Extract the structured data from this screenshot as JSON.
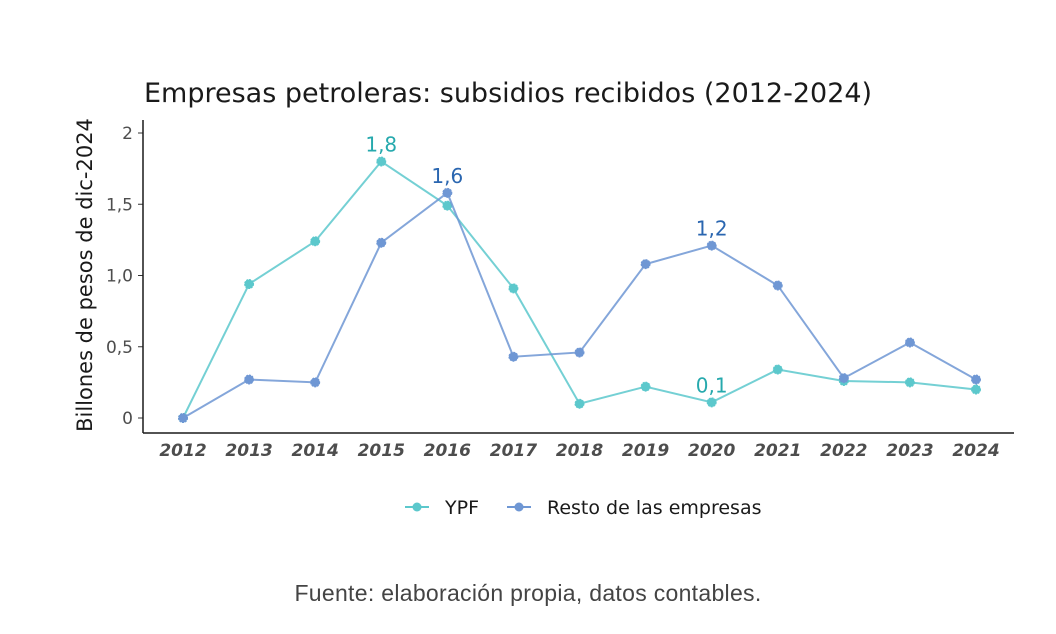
{
  "chart_data": {
    "type": "line",
    "title": "Empresas petroleras: subsidios recibidos (2012-2024)",
    "xlabel": "",
    "ylabel": "Billones de pesos de dic-2024",
    "ylim": [
      0,
      2
    ],
    "yticks": [
      0,
      0.5,
      1.0,
      1.5,
      2
    ],
    "ytick_labels": [
      "0",
      "0,5",
      "1,0",
      "1,5",
      "2"
    ],
    "categories": [
      "2012",
      "2013",
      "2014",
      "2015",
      "2016",
      "2017",
      "2018",
      "2019",
      "2020",
      "2021",
      "2022",
      "2023",
      "2024"
    ],
    "series": [
      {
        "name": "YPF",
        "color": "#5cc8cc",
        "values": [
          0,
          0.94,
          1.24,
          1.8,
          1.49,
          0.91,
          0.1,
          0.22,
          0.11,
          0.34,
          0.26,
          0.25,
          0.2
        ]
      },
      {
        "name": "Resto de las empresas",
        "color": "#6f97d4",
        "values": [
          0,
          0.27,
          0.25,
          1.23,
          1.58,
          0.43,
          0.46,
          1.08,
          1.21,
          0.93,
          0.28,
          0.53,
          0.27
        ]
      }
    ],
    "annotations": [
      {
        "text": "1,8",
        "series": "YPF",
        "category": "2015",
        "color": "#26a9ad"
      },
      {
        "text": "1,6",
        "series": "Resto de las empresas",
        "category": "2016",
        "color": "#2a66b0"
      },
      {
        "text": "1,2",
        "series": "Resto de las empresas",
        "category": "2020",
        "color": "#2a66b0"
      },
      {
        "text": "0,1",
        "series": "YPF",
        "category": "2020",
        "color": "#26a9ad"
      }
    ],
    "grid": false,
    "legend_position": "bottom"
  },
  "source": "Fuente: elaboración propia, datos contables."
}
